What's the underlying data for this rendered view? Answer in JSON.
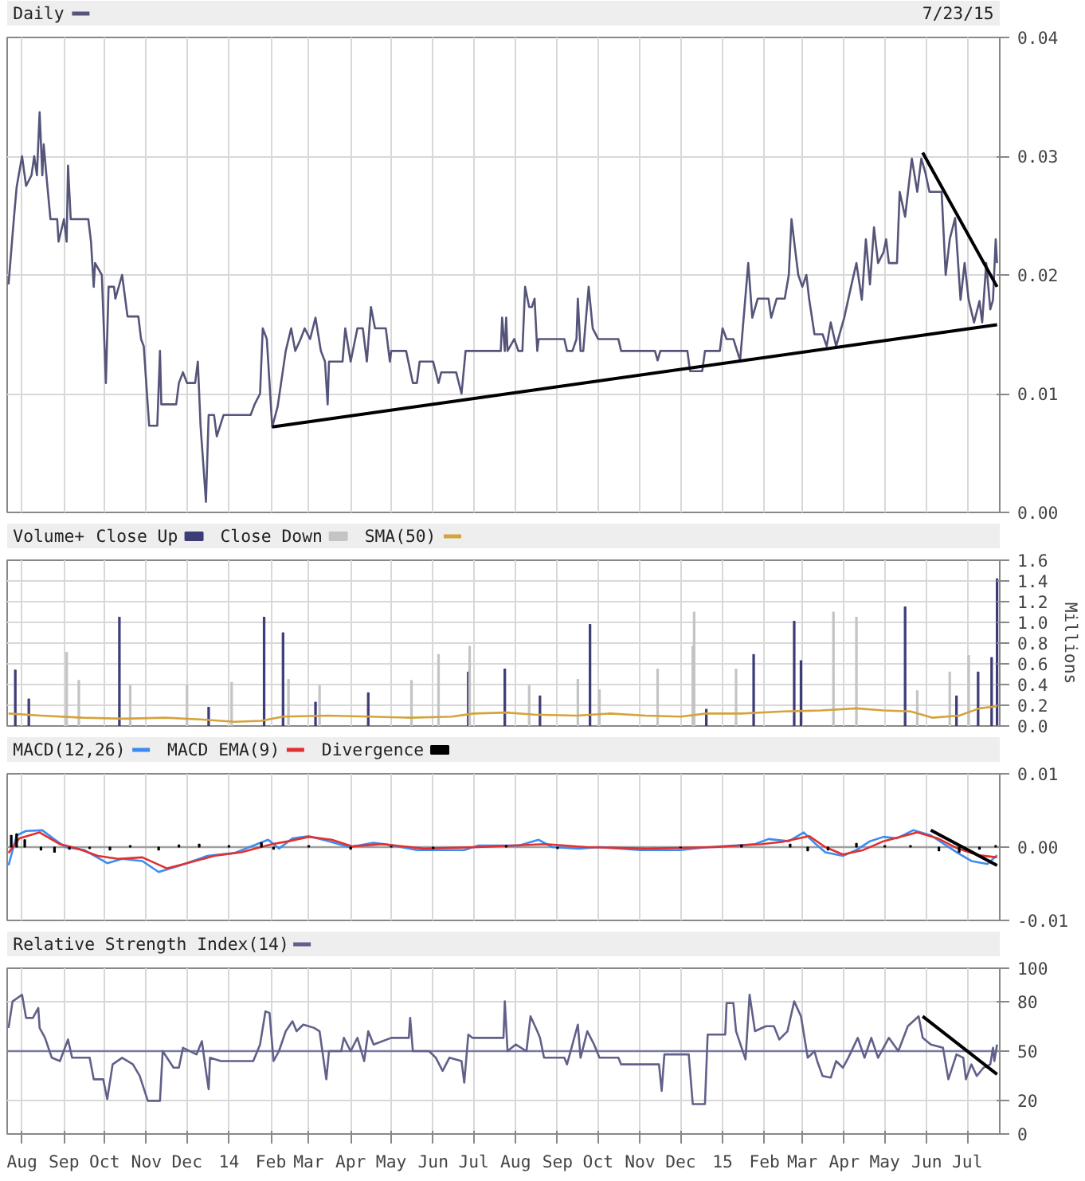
{
  "chart_data": [
    {
      "type": "line",
      "annotations": [
        "7/23/15"
      ],
      "legend": "top left",
      "grid": true,
      "tick_labels": "y",
      "xlim": [
        "2013-07-21",
        "2015-07-25"
      ],
      "xticks": [
        {
          "value": "2013-08-01",
          "label": null
        },
        {
          "value": "2013-09-01",
          "label": null
        },
        {
          "value": "2013-10-01",
          "label": null
        },
        {
          "value": "2013-11-01",
          "label": null
        },
        {
          "value": "2013-12-01",
          "label": null
        },
        {
          "value": "2014-01-01",
          "label": null
        },
        {
          "value": "2014-02-01",
          "label": null
        },
        {
          "value": "2014-03-01",
          "label": null
        },
        {
          "value": "2014-04-01",
          "label": null
        },
        {
          "value": "2014-05-01",
          "label": null
        },
        {
          "value": "2014-06-01",
          "label": null
        },
        {
          "value": "2014-07-01",
          "label": null
        },
        {
          "value": "2014-08-01",
          "label": null
        },
        {
          "value": "2014-09-01",
          "label": null
        },
        {
          "value": "2014-10-01",
          "label": null
        },
        {
          "value": "2014-11-01",
          "label": null
        },
        {
          "value": "2014-12-01",
          "label": null
        },
        {
          "value": "2015-01-01",
          "label": null
        },
        {
          "value": "2015-02-01",
          "label": null
        },
        {
          "value": "2015-03-01",
          "label": null
        },
        {
          "value": "2015-04-01",
          "label": null
        },
        {
          "value": "2015-05-01",
          "label": null
        },
        {
          "value": "2015-06-01",
          "label": null
        },
        {
          "value": "2015-07-01",
          "label": null
        }
      ],
      "ylim": [
        0,
        0.04
      ],
      "yticks": [
        {
          "value": 0,
          "label": "0.00"
        },
        {
          "value": 0.01,
          "label": "0.01"
        },
        {
          "value": 0.02,
          "label": "0.02"
        },
        {
          "value": 0.03,
          "label": "0.03"
        },
        {
          "value": 0.04,
          "label": "0.04"
        }
      ],
      "series": [
        {
          "name": "Daily",
          "color": "#55557a",
          "x": [
            "2013-07-22",
            "2013-07-26",
            "2013-07-28",
            "2013-08-01",
            "2013-08-04",
            "2013-08-08",
            "2013-08-10",
            "2013-08-12",
            "2013-08-14",
            "2013-08-16",
            "2013-08-17",
            "2013-08-19",
            "2013-08-22",
            "2013-08-27",
            "2013-08-28",
            "2013-09-01",
            "2013-09-03",
            "2013-09-04",
            "2013-09-06",
            "2013-09-19",
            "2013-09-21",
            "2013-09-23",
            "2013-09-24",
            "2013-09-29",
            "2013-10-02",
            "2013-10-04",
            "2013-10-08",
            "2013-10-09",
            "2013-10-14",
            "2013-10-18",
            "2013-10-26",
            "2013-10-28",
            "2013-10-30",
            "2013-11-03",
            "2013-11-09",
            "2013-11-11",
            "2013-11-12",
            "2013-11-23",
            "2013-11-25",
            "2013-11-28",
            "2013-12-01",
            "2013-12-07",
            "2013-12-09",
            "2013-12-11",
            "2013-12-15",
            "2013-12-17",
            "2013-12-21",
            "2013-12-23",
            "2013-12-28",
            "2014-01-17",
            "2014-01-20",
            "2014-01-24",
            "2014-01-26",
            "2014-01-29",
            "2014-02-02",
            "2014-02-06",
            "2014-02-12",
            "2014-02-16",
            "2014-02-19",
            "2014-02-23",
            "2014-02-26",
            "2014-03-02",
            "2014-03-06",
            "2014-03-10",
            "2014-03-13",
            "2014-03-15",
            "2014-03-16",
            "2014-03-26",
            "2014-03-28",
            "2014-04-01",
            "2014-04-06",
            "2014-04-10",
            "2014-04-13",
            "2014-04-16",
            "2014-04-19",
            "2014-04-27",
            "2014-04-30",
            "2014-05-01",
            "2014-05-12",
            "2014-05-17",
            "2014-05-20",
            "2014-05-22",
            "2014-06-01",
            "2014-06-05",
            "2014-06-07",
            "2014-06-18",
            "2014-06-22",
            "2014-06-25",
            "2014-07-21",
            "2014-07-22",
            "2014-07-24",
            "2014-07-25",
            "2014-07-26",
            "2014-07-31",
            "2014-08-03",
            "2014-08-06",
            "2014-08-08",
            "2014-08-11",
            "2014-08-13",
            "2014-08-15",
            "2014-08-17",
            "2014-08-18",
            "2014-09-06",
            "2014-09-08",
            "2014-09-12",
            "2014-09-15",
            "2014-09-16",
            "2014-09-18",
            "2014-09-20",
            "2014-09-24",
            "2014-09-27",
            "2014-10-01",
            "2014-10-16",
            "2014-10-18",
            "2014-11-12",
            "2014-11-14",
            "2014-11-16",
            "2014-12-06",
            "2014-12-08",
            "2014-12-17",
            "2014-12-19",
            "2014-12-30",
            "2015-01-01",
            "2015-01-04",
            "2015-01-09",
            "2015-01-14",
            "2015-01-20",
            "2015-01-23",
            "2015-01-27",
            "2015-02-04",
            "2015-02-06",
            "2015-02-10",
            "2015-02-16",
            "2015-02-19",
            "2015-02-21",
            "2015-02-23",
            "2015-02-26",
            "2015-03-01",
            "2015-03-04",
            "2015-03-06",
            "2015-03-10",
            "2015-03-16",
            "2015-03-19",
            "2015-03-22",
            "2015-03-26",
            "2015-04-01",
            "2015-04-06",
            "2015-04-10",
            "2015-04-14",
            "2015-04-17",
            "2015-04-20",
            "2015-04-23",
            "2015-04-26",
            "2015-04-30",
            "2015-05-02",
            "2015-05-04",
            "2015-05-10",
            "2015-05-12",
            "2015-05-16",
            "2015-05-21",
            "2015-05-25",
            "2015-05-28",
            "2015-05-31",
            "2015-06-03",
            "2015-06-12",
            "2015-06-15",
            "2015-06-18",
            "2015-06-22",
            "2015-06-26",
            "2015-06-29",
            "2015-07-02",
            "2015-07-06",
            "2015-07-10",
            "2015-07-12",
            "2015-07-15",
            "2015-07-18",
            "2015-07-20",
            "2015-07-22",
            "2015-07-23"
          ],
          "values": [
            0.0192,
            0.0248,
            0.0274,
            0.03,
            0.0275,
            0.0284,
            0.03,
            0.0284,
            0.0337,
            0.0284,
            0.031,
            0.0284,
            0.0247,
            0.0247,
            0.0228,
            0.0247,
            0.0228,
            0.0292,
            0.0247,
            0.0247,
            0.0228,
            0.019,
            0.021,
            0.02,
            0.0109,
            0.019,
            0.019,
            0.018,
            0.02,
            0.0165,
            0.0165,
            0.0146,
            0.014,
            0.0073,
            0.0073,
            0.0136,
            0.0091,
            0.0091,
            0.0109,
            0.0118,
            0.0109,
            0.0109,
            0.0127,
            0.0073,
            0.0009,
            0.0082,
            0.0082,
            0.0064,
            0.0082,
            0.0082,
            0.0091,
            0.01,
            0.0155,
            0.0146,
            0.0072,
            0.0089,
            0.0136,
            0.0155,
            0.0136,
            0.0146,
            0.0155,
            0.0146,
            0.0164,
            0.0136,
            0.0127,
            0.0091,
            0.0127,
            0.0127,
            0.0155,
            0.0127,
            0.0155,
            0.0155,
            0.0127,
            0.0173,
            0.0155,
            0.0155,
            0.0127,
            0.0136,
            0.0136,
            0.0109,
            0.0109,
            0.0127,
            0.0127,
            0.0109,
            0.0118,
            0.0118,
            0.01,
            0.0136,
            0.0136,
            0.0164,
            0.0136,
            0.0164,
            0.0136,
            0.0146,
            0.0136,
            0.0136,
            0.019,
            0.0173,
            0.0173,
            0.018,
            0.0136,
            0.0146,
            0.0146,
            0.0136,
            0.0136,
            0.0146,
            0.018,
            0.0136,
            0.0136,
            0.019,
            0.0155,
            0.0146,
            0.0146,
            0.0136,
            0.0136,
            0.0128,
            0.0136,
            0.0136,
            0.0119,
            0.0119,
            0.0136,
            0.0136,
            0.0155,
            0.0146,
            0.0146,
            0.0128,
            0.021,
            0.0164,
            0.018,
            0.018,
            0.0164,
            0.018,
            0.018,
            0.02,
            0.0247,
            0.0228,
            0.02,
            0.019,
            0.02,
            0.018,
            0.015,
            0.015,
            0.014,
            0.016,
            0.014,
            0.0164,
            0.019,
            0.021,
            0.0179,
            0.023,
            0.0192,
            0.024,
            0.021,
            0.0219,
            0.023,
            0.021,
            0.021,
            0.027,
            0.0249,
            0.0298,
            0.027,
            0.0298,
            0.0286,
            0.027,
            0.027,
            0.02,
            0.023,
            0.0248,
            0.0179,
            0.021,
            0.0179,
            0.016,
            0.0178,
            0.016,
            0.021,
            0.0171,
            0.0179,
            0.023,
            0.021
          ]
        },
        {
          "color": "#000000",
          "x": [
            "2014-02-02",
            "2015-07-23"
          ],
          "values": [
            0.0072,
            0.0158
          ]
        },
        {
          "color": "#000000",
          "x": [
            "2015-05-29",
            "2015-07-23"
          ],
          "values": [
            0.0303,
            0.019
          ]
        }
      ]
    },
    {
      "type": "bar",
      "title": "Volume+",
      "ylabel": "Millions",
      "legend": "top left",
      "grid": true,
      "tick_labels": "y",
      "xlim": [
        "2013-07-21",
        "2015-07-25"
      ],
      "xticks": [
        {
          "value": "2013-08-01",
          "label": null
        },
        {
          "value": "2013-09-01",
          "label": null
        },
        {
          "value": "2013-10-01",
          "label": null
        },
        {
          "value": "2013-11-01",
          "label": null
        },
        {
          "value": "2013-12-01",
          "label": null
        },
        {
          "value": "2014-01-01",
          "label": null
        },
        {
          "value": "2014-02-01",
          "label": null
        },
        {
          "value": "2014-03-01",
          "label": null
        },
        {
          "value": "2014-04-01",
          "label": null
        },
        {
          "value": "2014-05-01",
          "label": null
        },
        {
          "value": "2014-06-01",
          "label": null
        },
        {
          "value": "2014-07-01",
          "label": null
        },
        {
          "value": "2014-08-01",
          "label": null
        },
        {
          "value": "2014-09-01",
          "label": null
        },
        {
          "value": "2014-10-01",
          "label": null
        },
        {
          "value": "2014-11-01",
          "label": null
        },
        {
          "value": "2014-12-01",
          "label": null
        },
        {
          "value": "2015-01-01",
          "label": null
        },
        {
          "value": "2015-02-01",
          "label": null
        },
        {
          "value": "2015-03-01",
          "label": null
        },
        {
          "value": "2015-04-01",
          "label": null
        },
        {
          "value": "2015-05-01",
          "label": null
        },
        {
          "value": "2015-06-01",
          "label": null
        },
        {
          "value": "2015-07-01",
          "label": null
        }
      ],
      "ylim": [
        0,
        1.6
      ],
      "yticks": [
        {
          "value": 0,
          "label": "0.0"
        },
        {
          "value": 0.2,
          "label": "0.2"
        },
        {
          "value": 0.4,
          "label": "0.4"
        },
        {
          "value": 0.6,
          "label": "0.6"
        },
        {
          "value": 0.8,
          "label": "0.8"
        },
        {
          "value": 1.0,
          "label": "1.0"
        },
        {
          "value": 1.2,
          "label": "1.2"
        },
        {
          "value": 1.4,
          "label": "1.4"
        },
        {
          "value": 1.6,
          "label": "1.6"
        }
      ],
      "series": [
        {
          "name": "Close Up",
          "color": "#3c3c78",
          "x": [
            "2013-07-27",
            "2013-08-06",
            "2013-10-12",
            "2013-12-17",
            "2014-01-27",
            "2014-02-10",
            "2014-03-06",
            "2014-04-14",
            "2014-06-27",
            "2014-07-24",
            "2014-08-19",
            "2014-09-25",
            "2014-12-20",
            "2015-01-24",
            "2015-02-23",
            "2015-02-28",
            "2015-05-16",
            "2015-06-23",
            "2015-07-09",
            "2015-07-19",
            "2015-07-23"
          ],
          "values": [
            0.54,
            0.26,
            1.05,
            0.18,
            1.05,
            0.9,
            0.23,
            0.32,
            0.52,
            0.55,
            0.29,
            0.98,
            0.16,
            0.69,
            1.01,
            0.63,
            1.15,
            0.29,
            0.52,
            0.66,
            1.42
          ]
        },
        {
          "name": "Close Down",
          "color": "#c4c4c4",
          "x": [
            "2013-09-03",
            "2013-09-12",
            "2013-10-20",
            "2013-12-01",
            "2014-01-03",
            "2014-02-14",
            "2014-03-09",
            "2014-05-16",
            "2014-06-05",
            "2014-06-28",
            "2014-08-11",
            "2014-09-16",
            "2014-10-02",
            "2014-11-14",
            "2014-12-10",
            "2014-12-11",
            "2015-01-11",
            "2015-03-24",
            "2015-04-10",
            "2015-05-25",
            "2015-06-18",
            "2015-07-02"
          ],
          "values": [
            0.71,
            0.44,
            0.39,
            0.39,
            0.42,
            0.45,
            0.39,
            0.44,
            0.69,
            0.77,
            0.39,
            0.45,
            0.35,
            0.55,
            0.77,
            1.1,
            0.55,
            1.1,
            1.05,
            0.34,
            0.52,
            0.68
          ]
        },
        {
          "name": "SMA(50)",
          "type": "line",
          "color": "#d4a43a",
          "x": [
            "2013-07-22",
            "2013-08-15",
            "2013-09-15",
            "2013-10-15",
            "2013-11-15",
            "2013-12-15",
            "2014-01-05",
            "2014-01-25",
            "2014-02-10",
            "2014-03-15",
            "2014-04-15",
            "2014-05-15",
            "2014-06-15",
            "2014-07-01",
            "2014-07-25",
            "2014-08-15",
            "2014-09-15",
            "2014-10-10",
            "2014-11-05",
            "2014-12-01",
            "2014-12-20",
            "2015-01-15",
            "2015-02-15",
            "2015-03-15",
            "2015-04-10",
            "2015-04-30",
            "2015-05-20",
            "2015-06-05",
            "2015-06-25",
            "2015-07-10",
            "2015-07-23"
          ],
          "values": [
            0.12,
            0.1,
            0.08,
            0.07,
            0.08,
            0.06,
            0.04,
            0.05,
            0.09,
            0.1,
            0.09,
            0.08,
            0.09,
            0.12,
            0.13,
            0.11,
            0.1,
            0.12,
            0.1,
            0.09,
            0.12,
            0.12,
            0.14,
            0.15,
            0.17,
            0.15,
            0.14,
            0.08,
            0.1,
            0.17,
            0.19
          ]
        }
      ]
    },
    {
      "type": "line",
      "legend": "top left",
      "grid": true,
      "tick_labels": "y",
      "xlim": [
        "2013-07-21",
        "2015-07-25"
      ],
      "xticks": [
        {
          "value": "2013-08-01",
          "label": null
        },
        {
          "value": "2013-09-01",
          "label": null
        },
        {
          "value": "2013-10-01",
          "label": null
        },
        {
          "value": "2013-11-01",
          "label": null
        },
        {
          "value": "2013-12-01",
          "label": null
        },
        {
          "value": "2014-01-01",
          "label": null
        },
        {
          "value": "2014-02-01",
          "label": null
        },
        {
          "value": "2014-03-01",
          "label": null
        },
        {
          "value": "2014-04-01",
          "label": null
        },
        {
          "value": "2014-05-01",
          "label": null
        },
        {
          "value": "2014-06-01",
          "label": null
        },
        {
          "value": "2014-07-01",
          "label": null
        },
        {
          "value": "2014-08-01",
          "label": null
        },
        {
          "value": "2014-09-01",
          "label": null
        },
        {
          "value": "2014-10-01",
          "label": null
        },
        {
          "value": "2014-11-01",
          "label": null
        },
        {
          "value": "2014-12-01",
          "label": null
        },
        {
          "value": "2015-01-01",
          "label": null
        },
        {
          "value": "2015-02-01",
          "label": null
        },
        {
          "value": "2015-03-01",
          "label": null
        },
        {
          "value": "2015-04-01",
          "label": null
        },
        {
          "value": "2015-05-01",
          "label": null
        },
        {
          "value": "2015-06-01",
          "label": null
        },
        {
          "value": "2015-07-01",
          "label": null
        }
      ],
      "ylim": [
        -0.01,
        0.01
      ],
      "yticks": [
        {
          "value": -0.01,
          "label": "-0.01"
        },
        {
          "value": 0,
          "label": "0.00"
        },
        {
          "value": 0.01,
          "label": "0.01"
        }
      ],
      "ref_lines": [
        {
          "axis": "y",
          "value": 0,
          "color": "#a0a0a0"
        }
      ],
      "series": [
        {
          "name": "MACD(12,26)",
          "color": "#3c8cf0",
          "x": [
            "2013-07-22",
            "2013-07-28",
            "2013-08-04",
            "2013-08-16",
            "2013-08-24",
            "2013-09-02",
            "2013-09-16",
            "2013-10-03",
            "2013-10-14",
            "2013-10-29",
            "2013-11-10",
            "2013-11-26",
            "2013-12-16",
            "2014-01-05",
            "2014-01-30",
            "2014-02-07",
            "2014-02-17",
            "2014-03-01",
            "2014-03-16",
            "2014-03-31",
            "2014-04-18",
            "2014-05-03",
            "2014-05-20",
            "2014-06-24",
            "2014-07-04",
            "2014-08-03",
            "2014-08-18",
            "2014-08-28",
            "2014-09-17",
            "2014-10-02",
            "2014-11-01",
            "2014-12-01",
            "2014-12-21",
            "2015-01-10",
            "2015-01-25",
            "2015-02-04",
            "2015-02-19",
            "2015-03-02",
            "2015-03-11",
            "2015-03-18",
            "2015-03-31",
            "2015-04-10",
            "2015-04-20",
            "2015-04-30",
            "2015-05-10",
            "2015-05-22",
            "2015-06-04",
            "2015-06-14",
            "2015-06-24",
            "2015-07-04",
            "2015-07-16",
            "2015-07-23"
          ],
          "values": [
            -0.0025,
            0.0016,
            0.0022,
            0.0023,
            0.0012,
            0,
            -0.0004,
            -0.0022,
            -0.0016,
            -0.0019,
            -0.0034,
            -0.0025,
            -0.0012,
            -0.0008,
            0.001,
            -0.0002,
            0.0012,
            0.0015,
            0.0008,
            0,
            0.0006,
            0.0002,
            -0.0004,
            -0.0004,
            0.0002,
            0.0002,
            0.001,
            0,
            -0.0002,
            0,
            -0.0004,
            -0.0004,
            0,
            0.0002,
            0.0004,
            0.0011,
            0.0008,
            0.002,
            0.0004,
            -0.0007,
            -0.0012,
            -0.0004,
            0.0008,
            0.0014,
            0.0012,
            0.0023,
            0.0016,
            0.0004,
            -0.0008,
            -0.0019,
            -0.0023,
            -0.0011
          ]
        },
        {
          "name": "MACD EMA(9)",
          "color": "#e03030",
          "x": [
            "2013-07-22",
            "2013-07-30",
            "2013-08-14",
            "2013-08-29",
            "2013-09-11",
            "2013-09-26",
            "2013-10-11",
            "2013-10-29",
            "2013-11-16",
            "2013-12-01",
            "2013-12-21",
            "2014-01-10",
            "2014-02-02",
            "2014-02-14",
            "2014-03-01",
            "2014-03-18",
            "2014-04-02",
            "2014-04-25",
            "2014-05-25",
            "2014-07-04",
            "2014-08-23",
            "2014-09-22",
            "2014-11-06",
            "2014-12-26",
            "2015-01-30",
            "2015-02-14",
            "2015-03-06",
            "2015-03-18",
            "2015-03-31",
            "2015-04-15",
            "2015-04-30",
            "2015-05-25",
            "2015-06-09",
            "2015-06-24",
            "2015-07-09",
            "2015-07-23"
          ],
          "values": [
            -0.0008,
            0.0012,
            0.002,
            0.0004,
            -0.0002,
            -0.0012,
            -0.0016,
            -0.0014,
            -0.0029,
            -0.0022,
            -0.0012,
            -0.0007,
            0.0004,
            0.0008,
            0.0014,
            0.001,
            0.0001,
            0.0004,
            -0.0002,
            0,
            0.0004,
            0,
            -0.0002,
            0,
            0.0004,
            0.0007,
            0.0015,
            0,
            -0.001,
            -0.0004,
            0.0008,
            0.002,
            0.0012,
            -0.0002,
            -0.0011,
            -0.0014
          ]
        },
        {
          "name": "Divergence",
          "type": "bar",
          "color": "#000000",
          "x": [
            "2013-07-24",
            "2013-07-28",
            "2013-08-03",
            "2013-08-15",
            "2013-08-25",
            "2013-09-05",
            "2013-09-20",
            "2013-10-05",
            "2013-10-20",
            "2013-11-10",
            "2013-11-25",
            "2013-12-10",
            "2014-01-01",
            "2014-01-25",
            "2014-02-03",
            "2014-03-01",
            "2014-04-01",
            "2014-05-01",
            "2014-06-01",
            "2014-07-25",
            "2014-09-01",
            "2014-12-01",
            "2015-01-15",
            "2015-02-20",
            "2015-03-05",
            "2015-03-20",
            "2015-04-10",
            "2015-05-01",
            "2015-05-20",
            "2015-06-10",
            "2015-06-25",
            "2015-07-10",
            "2015-07-22"
          ],
          "values": [
            0.0016,
            0.0018,
            0.001,
            -0.0004,
            -0.0007,
            -0.0003,
            -0.0002,
            -0.0004,
            0.0002,
            -0.0004,
            0.0003,
            0.0004,
            0.0002,
            0.0006,
            -0.0003,
            0.0002,
            -0.0003,
            0.0001,
            -0.0002,
            0.0002,
            -0.0002,
            -0.0001,
            0.0003,
            0.0004,
            -0.0005,
            -0.0004,
            0.0005,
            0.0002,
            0.0002,
            -0.0005,
            -0.0007,
            -0.0003,
            0.0002
          ]
        },
        {
          "color": "#000000",
          "x": [
            "2015-06-04",
            "2015-07-23"
          ],
          "values": [
            0.0023,
            -0.0025
          ]
        }
      ]
    },
    {
      "type": "line",
      "legend": "top left",
      "grid": true,
      "xlim": [
        "2013-07-21",
        "2015-07-25"
      ],
      "xticks": [
        {
          "value": "2013-08-01",
          "label": "Aug"
        },
        {
          "value": "2013-09-01",
          "label": "Sep"
        },
        {
          "value": "2013-10-01",
          "label": "Oct"
        },
        {
          "value": "2013-11-01",
          "label": "Nov"
        },
        {
          "value": "2013-12-01",
          "label": "Dec"
        },
        {
          "value": "2014-01-01",
          "label": "14"
        },
        {
          "value": "2014-02-01",
          "label": "Feb"
        },
        {
          "value": "2014-03-01",
          "label": "Mar"
        },
        {
          "value": "2014-04-01",
          "label": "Apr"
        },
        {
          "value": "2014-05-01",
          "label": "May"
        },
        {
          "value": "2014-06-01",
          "label": "Jun"
        },
        {
          "value": "2014-07-01",
          "label": "Jul"
        },
        {
          "value": "2014-08-01",
          "label": "Aug"
        },
        {
          "value": "2014-09-01",
          "label": "Sep"
        },
        {
          "value": "2014-10-01",
          "label": "Oct"
        },
        {
          "value": "2014-11-01",
          "label": "Nov"
        },
        {
          "value": "2014-12-01",
          "label": "Dec"
        },
        {
          "value": "2015-01-01",
          "label": "15"
        },
        {
          "value": "2015-02-01",
          "label": "Feb"
        },
        {
          "value": "2015-03-01",
          "label": "Mar"
        },
        {
          "value": "2015-04-01",
          "label": "Apr"
        },
        {
          "value": "2015-05-01",
          "label": "May"
        },
        {
          "value": "2015-06-01",
          "label": "Jun"
        },
        {
          "value": "2015-07-01",
          "label": "Jul"
        }
      ],
      "ylim": [
        0,
        100
      ],
      "yticks": [
        0,
        20,
        50,
        80,
        100
      ],
      "ref_lines": [
        {
          "axis": "y",
          "value": 50,
          "color": "#7878a0"
        }
      ],
      "series": [
        {
          "name": "Relative Strength Index(14)",
          "color": "#60608a",
          "x": [
            "2013-07-22",
            "2013-07-25",
            "2013-08-01",
            "2013-08-04",
            "2013-08-09",
            "2013-08-13",
            "2013-08-14",
            "2013-08-18",
            "2013-08-23",
            "2013-08-29",
            "2013-09-04",
            "2013-09-07",
            "2013-09-20",
            "2013-09-23",
            "2013-09-30",
            "2013-10-03",
            "2013-10-07",
            "2013-10-14",
            "2013-10-22",
            "2013-10-27",
            "2013-11-02",
            "2013-11-11",
            "2013-11-13",
            "2013-11-21",
            "2013-11-25",
            "2013-11-28",
            "2013-12-08",
            "2013-12-12",
            "2013-12-15",
            "2013-12-17",
            "2013-12-18",
            "2013-12-26",
            "2014-01-19",
            "2014-01-24",
            "2014-01-28",
            "2014-01-31",
            "2014-02-03",
            "2014-02-07",
            "2014-02-12",
            "2014-02-17",
            "2014-02-20",
            "2014-02-25",
            "2014-03-05",
            "2014-03-09",
            "2014-03-14",
            "2014-03-16",
            "2014-03-25",
            "2014-03-27",
            "2014-04-01",
            "2014-04-06",
            "2014-04-11",
            "2014-04-14",
            "2014-04-18",
            "2014-05-01",
            "2014-05-14",
            "2014-05-15",
            "2014-05-17",
            "2014-05-29",
            "2014-06-03",
            "2014-06-08",
            "2014-06-13",
            "2014-06-22",
            "2014-06-24",
            "2014-06-27",
            "2014-06-30",
            "2014-07-23",
            "2014-07-24",
            "2014-07-26",
            "2014-08-01",
            "2014-08-09",
            "2014-08-12",
            "2014-08-17",
            "2014-08-19",
            "2014-08-22",
            "2014-09-06",
            "2014-09-08",
            "2014-09-16",
            "2014-09-18",
            "2014-09-23",
            "2014-09-28",
            "2014-10-02",
            "2014-10-16",
            "2014-10-18",
            "2014-11-15",
            "2014-11-17",
            "2014-11-19",
            "2014-12-07",
            "2014-12-10",
            "2014-12-19",
            "2014-12-21",
            "2015-01-03",
            "2015-01-04",
            "2015-01-09",
            "2015-01-11",
            "2015-01-18",
            "2015-01-21",
            "2015-01-25",
            "2015-02-02",
            "2015-02-08",
            "2015-02-12",
            "2015-02-18",
            "2015-02-23",
            "2015-02-28",
            "2015-03-05",
            "2015-03-10",
            "2015-03-12",
            "2015-03-16",
            "2015-03-22",
            "2015-03-26",
            "2015-03-31",
            "2015-04-04",
            "2015-04-11",
            "2015-04-16",
            "2015-04-21",
            "2015-04-26",
            "2015-05-04",
            "2015-05-11",
            "2015-05-18",
            "2015-05-26",
            "2015-05-29",
            "2015-06-04",
            "2015-06-13",
            "2015-06-17",
            "2015-06-23",
            "2015-06-28",
            "2015-06-30",
            "2015-07-04",
            "2015-07-08",
            "2015-07-13",
            "2015-07-18",
            "2015-07-20",
            "2015-07-21",
            "2015-07-23"
          ],
          "values": [
            64,
            80,
            84,
            70,
            70,
            76,
            64,
            58,
            46,
            44,
            57,
            46,
            46,
            33,
            33,
            21,
            42,
            46,
            42,
            35,
            20,
            20,
            50,
            40,
            40,
            52,
            48,
            56,
            38,
            27,
            46,
            44,
            44,
            54,
            74,
            73,
            44,
            50,
            62,
            68,
            62,
            66,
            64,
            62,
            33,
            50,
            50,
            58,
            50,
            58,
            44,
            62,
            54,
            58,
            58,
            70,
            50,
            50,
            46,
            38,
            46,
            44,
            31,
            60,
            58,
            58,
            80,
            50,
            54,
            50,
            71,
            62,
            58,
            46,
            46,
            42,
            66,
            46,
            62,
            54,
            46,
            46,
            42,
            42,
            26,
            48,
            48,
            18,
            18,
            60,
            60,
            79,
            79,
            62,
            45,
            84,
            62,
            65,
            65,
            57,
            62,
            80,
            71,
            46,
            50,
            44,
            35,
            34,
            44,
            40,
            46,
            58,
            46,
            58,
            46,
            58,
            50,
            65,
            71,
            58,
            54,
            52,
            33,
            48,
            46,
            33,
            42,
            35,
            40,
            42,
            52,
            44,
            54
          ]
        },
        {
          "color": "#000000",
          "x": [
            "2015-05-29",
            "2015-07-23"
          ],
          "values": [
            71,
            36
          ]
        }
      ]
    }
  ]
}
